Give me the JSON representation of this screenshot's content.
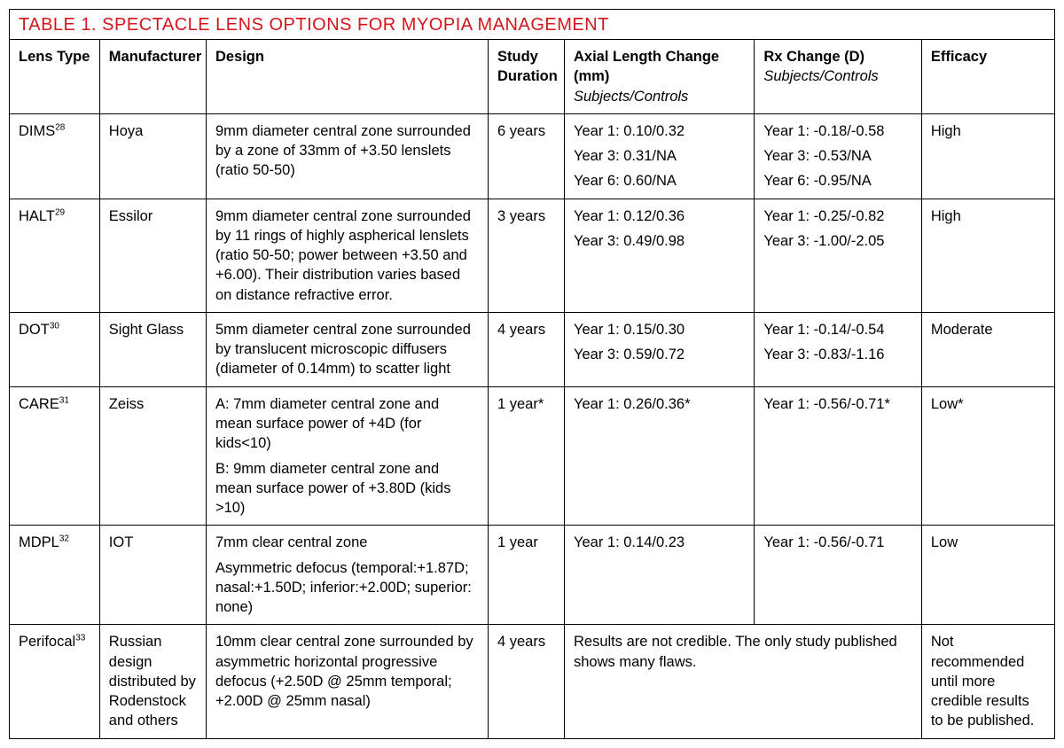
{
  "title_color": "#d4161c",
  "title": "TABLE 1. SPECTACLE LENS OPTIONS FOR MYOPIA MANAGEMENT",
  "columns": {
    "lens_type": "Lens Type",
    "manufacturer": "Manufacturer",
    "design": "Design",
    "duration": "Study Duration",
    "axial_main": "Axial Length Change (mm)",
    "axial_sub": "Subjects/Controls",
    "rx_main": "Rx Change  (D)",
    "rx_sub": "Subjects/Controls",
    "efficacy": "Efficacy"
  },
  "rows": [
    {
      "lens": "DIMS",
      "ref": "28",
      "mfr": "Hoya",
      "design": [
        "9mm diameter central zone surrounded by a zone of 33mm of +3.50 lenslets (ratio 50-50)"
      ],
      "duration": "6 years",
      "axial": [
        "Year 1: 0.10/0.32",
        "Year 3: 0.31/NA",
        "Year 6: 0.60/NA"
      ],
      "rx": [
        "Year 1: -0.18/-0.58",
        "Year 3: -0.53/NA",
        "Year 6: -0.95/NA"
      ],
      "efficacy": "High",
      "merge_axial_rx": false
    },
    {
      "lens": "HALT",
      "ref": "29",
      "mfr": "Essilor",
      "design": [
        "9mm diameter central zone surrounded by 11 rings of highly aspherical lenslets (ratio 50-50; power between +3.50 and +6.00). Their distribution varies based on distance refractive error."
      ],
      "duration": "3 years",
      "axial": [
        "Year 1: 0.12/0.36",
        "Year 3: 0.49/0.98"
      ],
      "rx": [
        "Year 1: -0.25/-0.82",
        "Year 3: -1.00/-2.05"
      ],
      "efficacy": "High",
      "merge_axial_rx": false
    },
    {
      "lens": "DOT",
      "ref": "30",
      "mfr": "Sight Glass",
      "design": [
        "5mm diameter central zone surrounded by translucent microscopic diffusers (diameter of 0.14mm) to scatter light"
      ],
      "duration": "4 years",
      "axial": [
        "Year 1: 0.15/0.30",
        "Year 3: 0.59/0.72"
      ],
      "rx": [
        "Year 1: -0.14/-0.54",
        "Year 3: -0.83/-1.16"
      ],
      "efficacy": "Moderate",
      "merge_axial_rx": false
    },
    {
      "lens": "CARE",
      "ref": "31",
      "mfr": "Zeiss",
      "design": [
        "A: 7mm diameter central zone and mean surface power of +4D (for kids<10)",
        "B: 9mm diameter central zone and mean surface power of +3.80D (kids >10)"
      ],
      "duration": "1 year*",
      "axial": [
        "Year 1: 0.26/0.36*"
      ],
      "rx": [
        "Year 1: -0.56/-0.71*"
      ],
      "efficacy": "Low*",
      "merge_axial_rx": false
    },
    {
      "lens": "MDPL",
      "ref": "32",
      "mfr": "IOT",
      "design": [
        "7mm clear central zone",
        "Asymmetric defocus (temporal:+1.87D; nasal:+1.50D; inferior:+2.00D; superior: none)"
      ],
      "duration": "1 year",
      "axial": [
        "Year 1: 0.14/0.23"
      ],
      "rx": [
        "Year 1: -0.56/-0.71"
      ],
      "efficacy": "Low",
      "merge_axial_rx": false
    },
    {
      "lens": "Perifocal",
      "ref": "33",
      "mfr": "Russian design distributed by Rodenstock and others",
      "design": [
        "10mm clear central zone surrounded by asymmetric horizontal progressive defocus (+2.50D @ 25mm temporal; +2.00D @ 25mm nasal)"
      ],
      "duration": "4 years",
      "axial": [
        "Results are not credible. The only study published shows many flaws."
      ],
      "rx": [],
      "efficacy": "Not recommended until more credible results to be published.",
      "merge_axial_rx": true
    }
  ]
}
